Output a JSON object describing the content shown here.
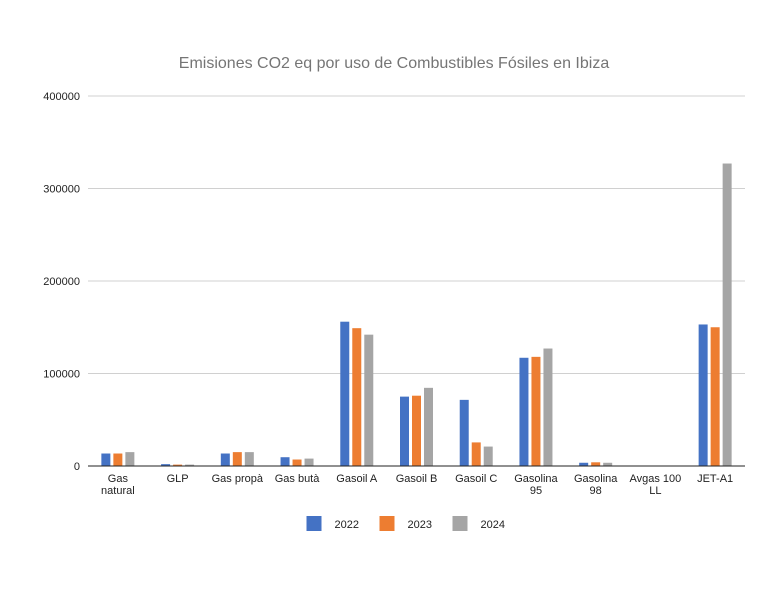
{
  "chart_data": {
    "type": "bar",
    "title": "Emisiones CO2 eq por uso de Combustibles Fósiles en Ibiza",
    "xlabel": "",
    "ylabel": "",
    "ylim": [
      0,
      400000
    ],
    "yticks": [
      "0",
      "100000",
      "200000",
      "300000",
      "400000"
    ],
    "grid": true,
    "legend_position": "bottom",
    "categories": [
      [
        "Gas",
        "natural"
      ],
      [
        "GLP"
      ],
      [
        "Gas propà"
      ],
      [
        "Gas butà"
      ],
      [
        "Gasoil A"
      ],
      [
        "Gasoil B"
      ],
      [
        "Gasoil C"
      ],
      [
        "Gasolina",
        "95"
      ],
      [
        "Gasolina",
        "98"
      ],
      [
        "Avgas 100",
        "LL"
      ],
      [
        "JET-A1"
      ]
    ],
    "series": [
      {
        "name": "2022",
        "color": "#4472c4",
        "values": [
          13500,
          2000,
          13500,
          9500,
          156000,
          75000,
          71500,
          117000,
          3500,
          300,
          153000
        ]
      },
      {
        "name": "2023",
        "color": "#ed7d31",
        "values": [
          13500,
          1500,
          15000,
          7000,
          149000,
          76000,
          25500,
          118000,
          4000,
          300,
          150000
        ]
      },
      {
        "name": "2024",
        "color": "#a5a5a5",
        "values": [
          15000,
          1500,
          15000,
          8000,
          142000,
          84500,
          21000,
          127000,
          3500,
          300,
          327000
        ]
      }
    ]
  }
}
